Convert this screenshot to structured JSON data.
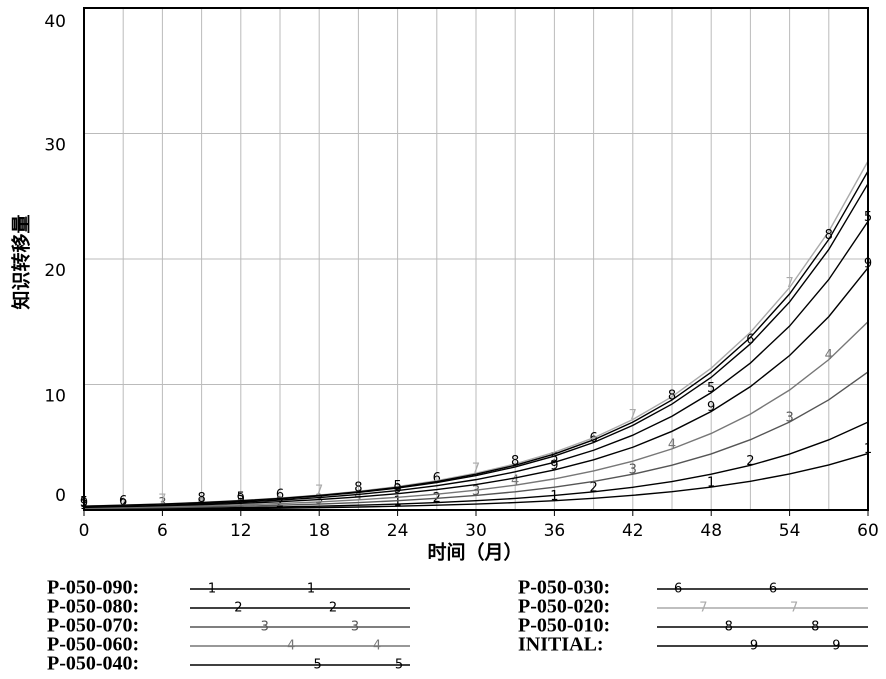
{
  "chart_data": {
    "type": "line",
    "xlabel": "时间（月）",
    "ylabel": "知识转移量",
    "x": [
      0,
      3,
      6,
      9,
      12,
      15,
      18,
      21,
      24,
      27,
      30,
      33,
      36,
      39,
      42,
      45,
      48,
      51,
      54,
      57,
      60
    ],
    "xlim": [
      0,
      60
    ],
    "xticks": [
      0,
      6,
      12,
      18,
      24,
      30,
      36,
      42,
      48,
      54,
      60
    ],
    "x_gridlines": [
      0,
      3,
      6,
      9,
      12,
      15,
      18,
      21,
      24,
      27,
      30,
      33,
      36,
      39,
      42,
      45,
      48,
      51,
      54,
      57,
      60
    ],
    "ylim": [
      0,
      40
    ],
    "yticks": [
      0,
      10,
      20,
      30,
      40
    ],
    "grid": true,
    "series": [
      {
        "name": "P-050-090:",
        "marker": "1",
        "color": "#000000",
        "values": [
          0.05,
          0.06,
          0.08,
          0.1,
          0.12,
          0.15,
          0.19,
          0.24,
          0.3,
          0.38,
          0.47,
          0.59,
          0.74,
          0.93,
          1.17,
          1.46,
          1.83,
          2.29,
          2.87,
          3.59,
          4.5
        ]
      },
      {
        "name": "P-050-080:",
        "marker": "2",
        "color": "#000000",
        "values": [
          0.08,
          0.1,
          0.12,
          0.15,
          0.19,
          0.24,
          0.3,
          0.38,
          0.47,
          0.59,
          0.74,
          0.92,
          1.16,
          1.45,
          1.81,
          2.27,
          2.85,
          3.56,
          4.46,
          5.59,
          7
        ]
      },
      {
        "name": "P-050-070:",
        "marker": "3",
        "color": "#555555",
        "values": [
          0.12,
          0.15,
          0.19,
          0.24,
          0.3,
          0.38,
          0.47,
          0.59,
          0.74,
          0.93,
          1.16,
          1.45,
          1.82,
          2.28,
          2.85,
          3.57,
          4.47,
          5.6,
          7.01,
          8.78,
          11
        ]
      },
      {
        "name": "P-050-060:",
        "marker": "4",
        "color": "#777777",
        "values": [
          0.17,
          0.21,
          0.26,
          0.33,
          0.41,
          0.51,
          0.64,
          0.81,
          1.01,
          1.26,
          1.58,
          1.98,
          2.48,
          3.11,
          3.89,
          4.87,
          6.1,
          7.64,
          9.56,
          11.98,
          15
        ]
      },
      {
        "name": "P-050-040:",
        "marker": "5",
        "color": "#000000",
        "values": [
          0.26,
          0.32,
          0.4,
          0.5,
          0.63,
          0.79,
          0.99,
          1.24,
          1.55,
          1.94,
          2.42,
          3.04,
          3.8,
          4.76,
          5.96,
          7.47,
          9.35,
          11.71,
          14.66,
          18.37,
          23
        ]
      },
      {
        "name": "P-050-030:",
        "marker": "6",
        "color": "#000000",
        "values": [
          0.29,
          0.36,
          0.45,
          0.57,
          0.71,
          0.89,
          1.12,
          1.4,
          1.75,
          2.19,
          2.74,
          3.43,
          4.3,
          5.38,
          6.74,
          8.44,
          10.57,
          13.24,
          16.58,
          20.76,
          26
        ]
      },
      {
        "name": "P-050-020:",
        "marker": "7",
        "color": "#aaaaaa",
        "values": [
          0.31,
          0.39,
          0.48,
          0.61,
          0.76,
          0.95,
          1.19,
          1.49,
          1.87,
          2.34,
          2.93,
          3.67,
          4.6,
          5.75,
          7.21,
          9.03,
          11.3,
          14.16,
          17.73,
          22.2,
          27.8
        ]
      },
      {
        "name": "P-050-010:",
        "marker": "8",
        "color": "#000000",
        "values": [
          0.3,
          0.38,
          0.47,
          0.59,
          0.74,
          0.92,
          1.16,
          1.45,
          1.81,
          2.27,
          2.85,
          3.56,
          4.46,
          5.59,
          7.0,
          8.77,
          10.98,
          13.75,
          17.22,
          21.56,
          27
        ]
      },
      {
        "name": "INITIAL:",
        "marker": "9",
        "color": "#000000",
        "values": [
          0.21,
          0.27,
          0.34,
          0.42,
          0.53,
          0.66,
          0.83,
          1.04,
          1.3,
          1.63,
          2.03,
          2.55,
          3.19,
          4.0,
          5.0,
          6.27,
          7.85,
          9.83,
          12.31,
          15.41,
          19.3
        ]
      }
    ]
  }
}
